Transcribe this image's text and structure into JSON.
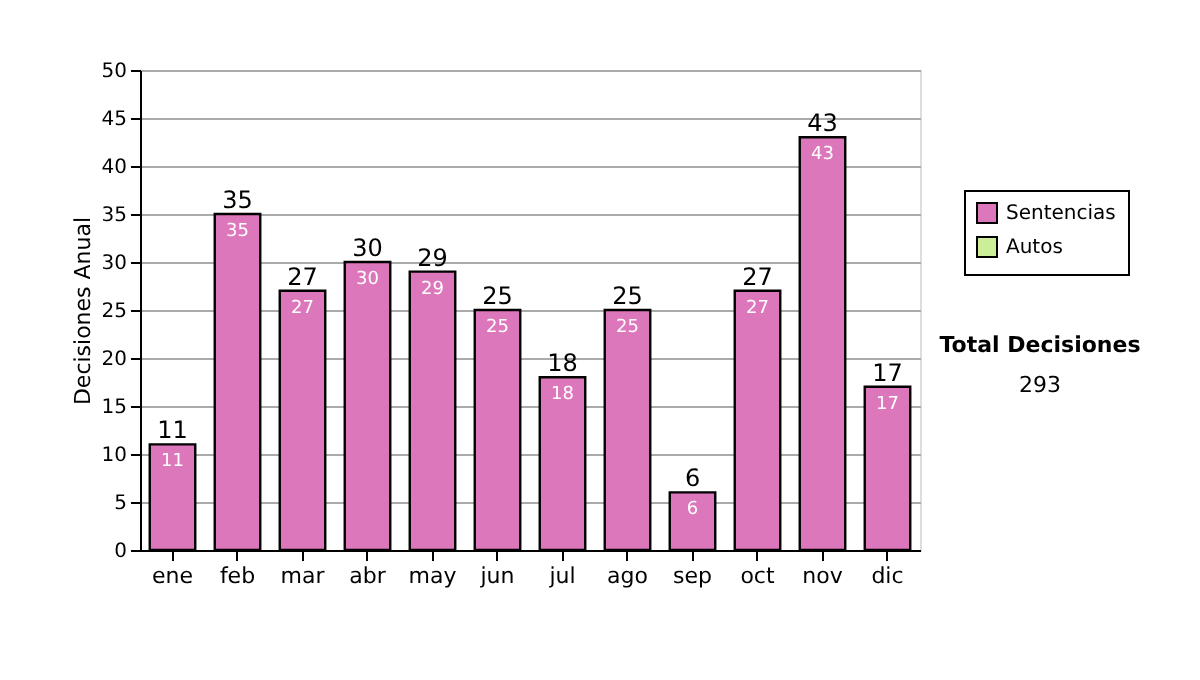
{
  "chart_data": {
    "type": "bar",
    "ylabel": "Decisiones Anual",
    "categories": [
      "ene",
      "feb",
      "mar",
      "abr",
      "may",
      "jun",
      "jul",
      "ago",
      "sep",
      "oct",
      "nov",
      "dic"
    ],
    "series": [
      {
        "name": "Sentencias",
        "color": "#dd77bb",
        "values": [
          11,
          35,
          27,
          30,
          29,
          25,
          18,
          25,
          6,
          27,
          43,
          17
        ]
      },
      {
        "name": "Autos",
        "color": "#ccee99",
        "values": [
          null,
          null,
          null,
          null,
          null,
          null,
          null,
          null,
          null,
          null,
          null,
          null
        ]
      }
    ],
    "data_labels": true,
    "totals": [
      "11",
      "35",
      "27",
      "30",
      "29",
      "25",
      "18",
      "25",
      "6",
      "27",
      "43",
      "17"
    ],
    "ylim": [
      0,
      50
    ],
    "yticks": [
      0,
      5,
      10,
      15,
      20,
      25,
      30,
      35,
      40,
      45,
      50
    ],
    "grid": "y",
    "legend": "right",
    "annotations": [
      "Total Decisiones",
      "293"
    ]
  }
}
